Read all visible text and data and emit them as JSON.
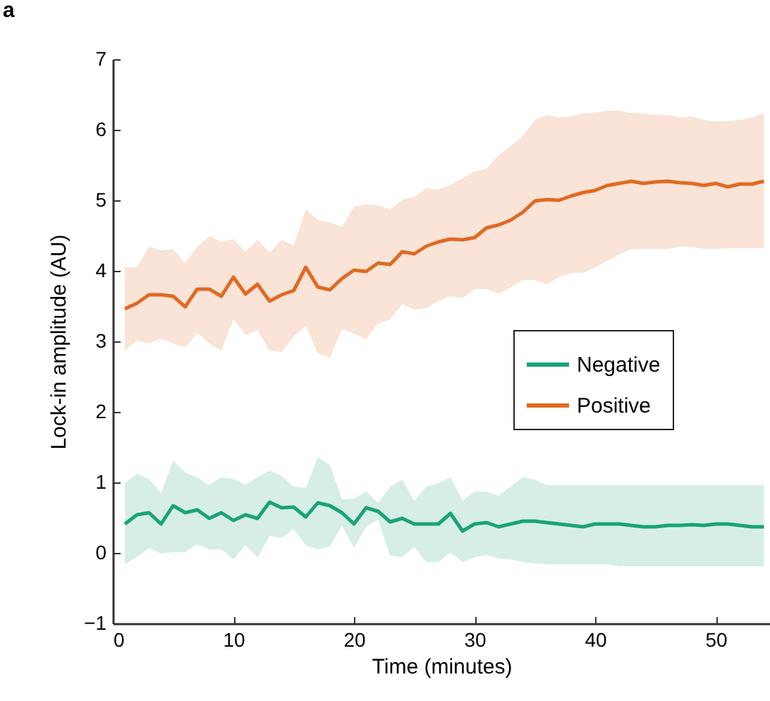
{
  "chart_data": {
    "type": "line",
    "annotations": [
      "a"
    ],
    "xlabel": "Time (minutes)",
    "ylabel": "Lock-in amplitude (AU)",
    "x": [
      1,
      2,
      3,
      4,
      5,
      6,
      7,
      8,
      9,
      10,
      11,
      12,
      13,
      14,
      15,
      16,
      17,
      18,
      19,
      20,
      21,
      22,
      23,
      24,
      25,
      26,
      27,
      28,
      29,
      30,
      31,
      32,
      33,
      34,
      35,
      36,
      37,
      38,
      39,
      40,
      41,
      42,
      43,
      44,
      45,
      46,
      47,
      48,
      49,
      50,
      51,
      52,
      53,
      54
    ],
    "series": [
      {
        "name": "Negative",
        "color": "#1aa37a",
        "values": [
          0.41,
          0.54,
          0.57,
          0.41,
          0.67,
          0.57,
          0.61,
          0.49,
          0.57,
          0.46,
          0.54,
          0.49,
          0.72,
          0.64,
          0.65,
          0.51,
          0.71,
          0.67,
          0.57,
          0.41,
          0.64,
          0.59,
          0.44,
          0.49,
          0.41,
          0.41,
          0.41,
          0.56,
          0.31,
          0.41,
          0.43,
          0.37,
          0.41,
          0.45,
          0.45,
          0.43,
          0.41,
          0.39,
          0.37,
          0.41,
          0.41,
          0.41,
          0.39,
          0.37,
          0.37,
          0.39,
          0.39,
          0.4,
          0.39,
          0.41,
          0.41,
          0.39,
          0.37,
          0.37
        ],
        "lower": [
          -0.16,
          -0.06,
          0.07,
          -0.01,
          0.01,
          0.01,
          0.12,
          0.05,
          0.05,
          -0.09,
          0.11,
          -0.06,
          0.24,
          0.21,
          0.34,
          0.11,
          0.05,
          0.09,
          0.39,
          0.07,
          0.37,
          0.47,
          -0.04,
          -0.06,
          0.09,
          -0.13,
          -0.13,
          0.01,
          -0.13,
          -0.06,
          -0.03,
          -0.08,
          -0.09,
          -0.13,
          -0.15,
          -0.16,
          -0.16,
          -0.16,
          -0.16,
          -0.16,
          -0.16,
          -0.19,
          -0.19,
          -0.19,
          -0.19,
          -0.19,
          -0.19,
          -0.19,
          -0.19,
          -0.19,
          -0.19,
          -0.19,
          -0.19,
          -0.19
        ],
        "upper": [
          0.99,
          1.12,
          1.05,
          0.85,
          1.31,
          1.14,
          1.07,
          0.96,
          1.07,
          1.05,
          0.97,
          1.07,
          1.17,
          1.09,
          0.94,
          0.92,
          1.36,
          1.25,
          0.76,
          0.77,
          0.87,
          0.71,
          0.94,
          1.04,
          0.74,
          0.94,
          0.99,
          1.07,
          0.74,
          0.87,
          0.87,
          0.81,
          0.94,
          1.07,
          1.04,
          0.96,
          0.96,
          0.96,
          0.96,
          0.96,
          0.96,
          0.96,
          0.96,
          0.96,
          0.96,
          0.96,
          0.96,
          0.96,
          0.96,
          0.96,
          0.96,
          0.96,
          0.96,
          0.96
        ]
      },
      {
        "name": "Positive",
        "color": "#e06a23",
        "values": [
          3.46,
          3.54,
          3.66,
          3.66,
          3.64,
          3.49,
          3.74,
          3.74,
          3.64,
          3.91,
          3.67,
          3.81,
          3.57,
          3.66,
          3.72,
          4.05,
          3.77,
          3.73,
          3.89,
          4.01,
          3.99,
          4.11,
          4.09,
          4.27,
          4.24,
          4.35,
          4.41,
          4.45,
          4.44,
          4.47,
          4.61,
          4.65,
          4.72,
          4.83,
          4.99,
          5.01,
          5.0,
          5.06,
          5.11,
          5.14,
          5.21,
          5.24,
          5.27,
          5.24,
          5.26,
          5.27,
          5.25,
          5.24,
          5.21,
          5.24,
          5.19,
          5.23,
          5.23,
          5.27
        ],
        "lower": [
          2.87,
          3.01,
          2.97,
          3.04,
          2.97,
          2.91,
          3.12,
          2.97,
          2.87,
          3.32,
          3.09,
          3.16,
          2.87,
          2.85,
          3.07,
          3.22,
          2.83,
          2.77,
          3.17,
          3.11,
          3.03,
          3.25,
          3.31,
          3.53,
          3.45,
          3.47,
          3.57,
          3.64,
          3.61,
          3.74,
          3.74,
          3.67,
          3.77,
          3.87,
          3.87,
          3.81,
          3.91,
          3.97,
          3.97,
          4.05,
          4.14,
          4.23,
          4.31,
          4.31,
          4.31,
          4.31,
          4.34,
          4.34,
          4.31,
          4.31,
          4.32,
          4.32,
          4.32,
          4.32
        ],
        "upper": [
          4.05,
          4.05,
          4.34,
          4.29,
          4.31,
          4.11,
          4.34,
          4.49,
          4.41,
          4.45,
          4.27,
          4.44,
          4.26,
          4.44,
          4.36,
          4.87,
          4.72,
          4.69,
          4.62,
          4.91,
          4.94,
          4.93,
          4.87,
          5.01,
          5.05,
          5.17,
          5.15,
          5.22,
          5.31,
          5.41,
          5.45,
          5.64,
          5.77,
          5.91,
          6.14,
          6.21,
          6.17,
          6.19,
          6.23,
          6.24,
          6.27,
          6.27,
          6.24,
          6.23,
          6.21,
          6.21,
          6.17,
          6.19,
          6.14,
          6.12,
          6.12,
          6.14,
          6.17,
          6.24
        ]
      }
    ],
    "xlim": [
      0,
      54.5
    ],
    "xticks": [
      0,
      10,
      20,
      30,
      40,
      50
    ],
    "ylim": [
      -1,
      7
    ],
    "yticks": [
      -1,
      0,
      1,
      2,
      3,
      4,
      5,
      6,
      7
    ],
    "legend": "right",
    "grid": false
  }
}
